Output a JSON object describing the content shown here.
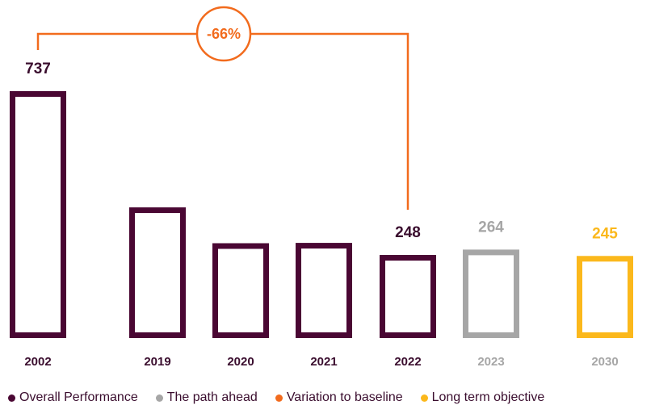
{
  "chart_data": {
    "type": "bar",
    "categories": [
      "2002",
      "2019",
      "2020",
      "2021",
      "2022",
      "2023",
      "2030"
    ],
    "values": [
      737,
      390,
      283,
      284,
      248,
      264,
      245
    ],
    "value_labels": [
      "737",
      "",
      "",
      "",
      "248",
      "264",
      "245"
    ],
    "bar_groups": [
      "overall",
      "overall",
      "overall",
      "overall",
      "overall",
      "path",
      "objective"
    ],
    "ylim": [
      0,
      737
    ],
    "grid": false,
    "variation": {
      "from": "2002",
      "to": "2022",
      "label": "-66%"
    },
    "legend_position": "bottom-left",
    "legend": [
      {
        "label": "Overall Performance",
        "color": "#4a0733"
      },
      {
        "label": "The path ahead",
        "color": "#a6a6a6"
      },
      {
        "label": "Variation to baseline",
        "color": "#f26b1d"
      },
      {
        "label": "Long term objective",
        "color": "#fbb81c"
      }
    ]
  },
  "colors": {
    "overall": "#4a0733",
    "path": "#a6a6a6",
    "objective": "#fbb81c",
    "variation": "#f26b1d",
    "tick_overall": "#3a0d2e",
    "tick_other": "#a6a6a6"
  }
}
